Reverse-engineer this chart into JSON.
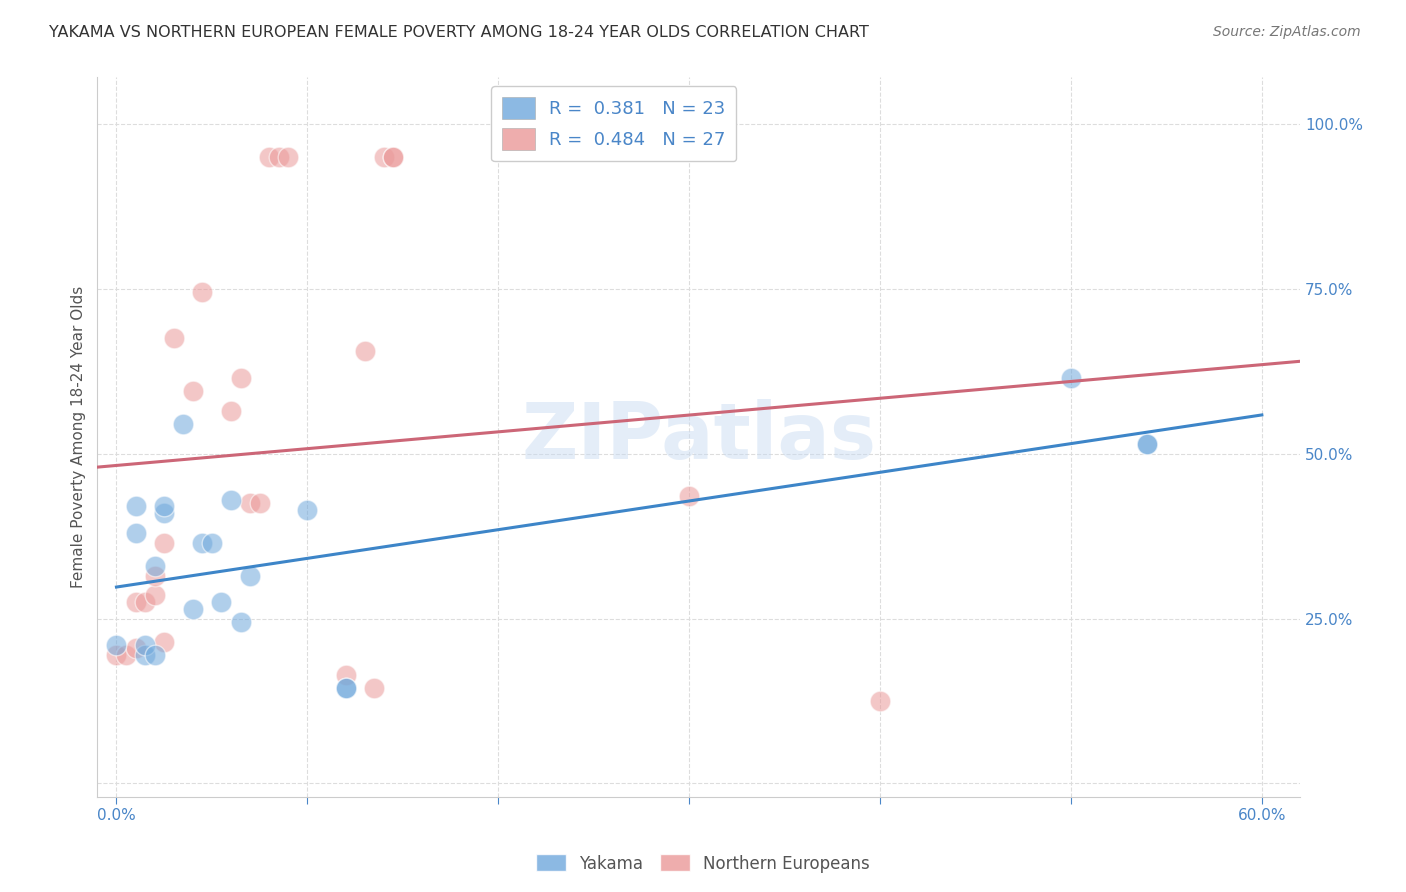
{
  "title": "YAKAMA VS NORTHERN EUROPEAN FEMALE POVERTY AMONG 18-24 YEAR OLDS CORRELATION CHART",
  "source": "Source: ZipAtlas.com",
  "ylabel": "Female Poverty Among 18-24 Year Olds",
  "x_tick_labels": [
    "0.0%",
    "",
    "",
    "",
    "",
    "",
    "60.0%"
  ],
  "x_tick_values": [
    0.0,
    0.1,
    0.2,
    0.3,
    0.4,
    0.5,
    0.6
  ],
  "y_tick_labels": [
    "",
    "25.0%",
    "50.0%",
    "75.0%",
    "100.0%"
  ],
  "y_tick_values": [
    0.0,
    0.25,
    0.5,
    0.75,
    1.0
  ],
  "xlim": [
    -0.01,
    0.62
  ],
  "ylim": [
    -0.02,
    1.07
  ],
  "yakama_color": "#6fa8dc",
  "northern_color": "#ea9999",
  "yakama_line_color": "#3d85c8",
  "northern_line_color": "#cc6677",
  "yakama_R": 0.381,
  "yakama_N": 23,
  "northern_R": 0.484,
  "northern_N": 27,
  "legend_labels": [
    "Yakama",
    "Northern Europeans"
  ],
  "watermark": "ZIPatlas",
  "yakama_x": [
    0.0,
    0.01,
    0.01,
    0.015,
    0.015,
    0.02,
    0.02,
    0.025,
    0.025,
    0.035,
    0.04,
    0.045,
    0.05,
    0.055,
    0.06,
    0.065,
    0.07,
    0.1,
    0.12,
    0.12,
    0.5,
    0.54,
    0.54
  ],
  "yakama_y": [
    0.21,
    0.38,
    0.42,
    0.195,
    0.21,
    0.195,
    0.33,
    0.41,
    0.42,
    0.545,
    0.265,
    0.365,
    0.365,
    0.275,
    0.43,
    0.245,
    0.315,
    0.415,
    0.145,
    0.145,
    0.615,
    0.515,
    0.515
  ],
  "northern_x": [
    0.0,
    0.005,
    0.01,
    0.01,
    0.015,
    0.02,
    0.02,
    0.025,
    0.025,
    0.03,
    0.04,
    0.045,
    0.06,
    0.065,
    0.07,
    0.075,
    0.08,
    0.085,
    0.09,
    0.12,
    0.13,
    0.135,
    0.14,
    0.145,
    0.3,
    0.145,
    0.4
  ],
  "northern_y": [
    0.195,
    0.195,
    0.205,
    0.275,
    0.275,
    0.285,
    0.315,
    0.215,
    0.365,
    0.675,
    0.595,
    0.745,
    0.565,
    0.615,
    0.425,
    0.425,
    0.95,
    0.95,
    0.95,
    0.165,
    0.655,
    0.145,
    0.95,
    0.95,
    0.435,
    0.95,
    0.125
  ]
}
